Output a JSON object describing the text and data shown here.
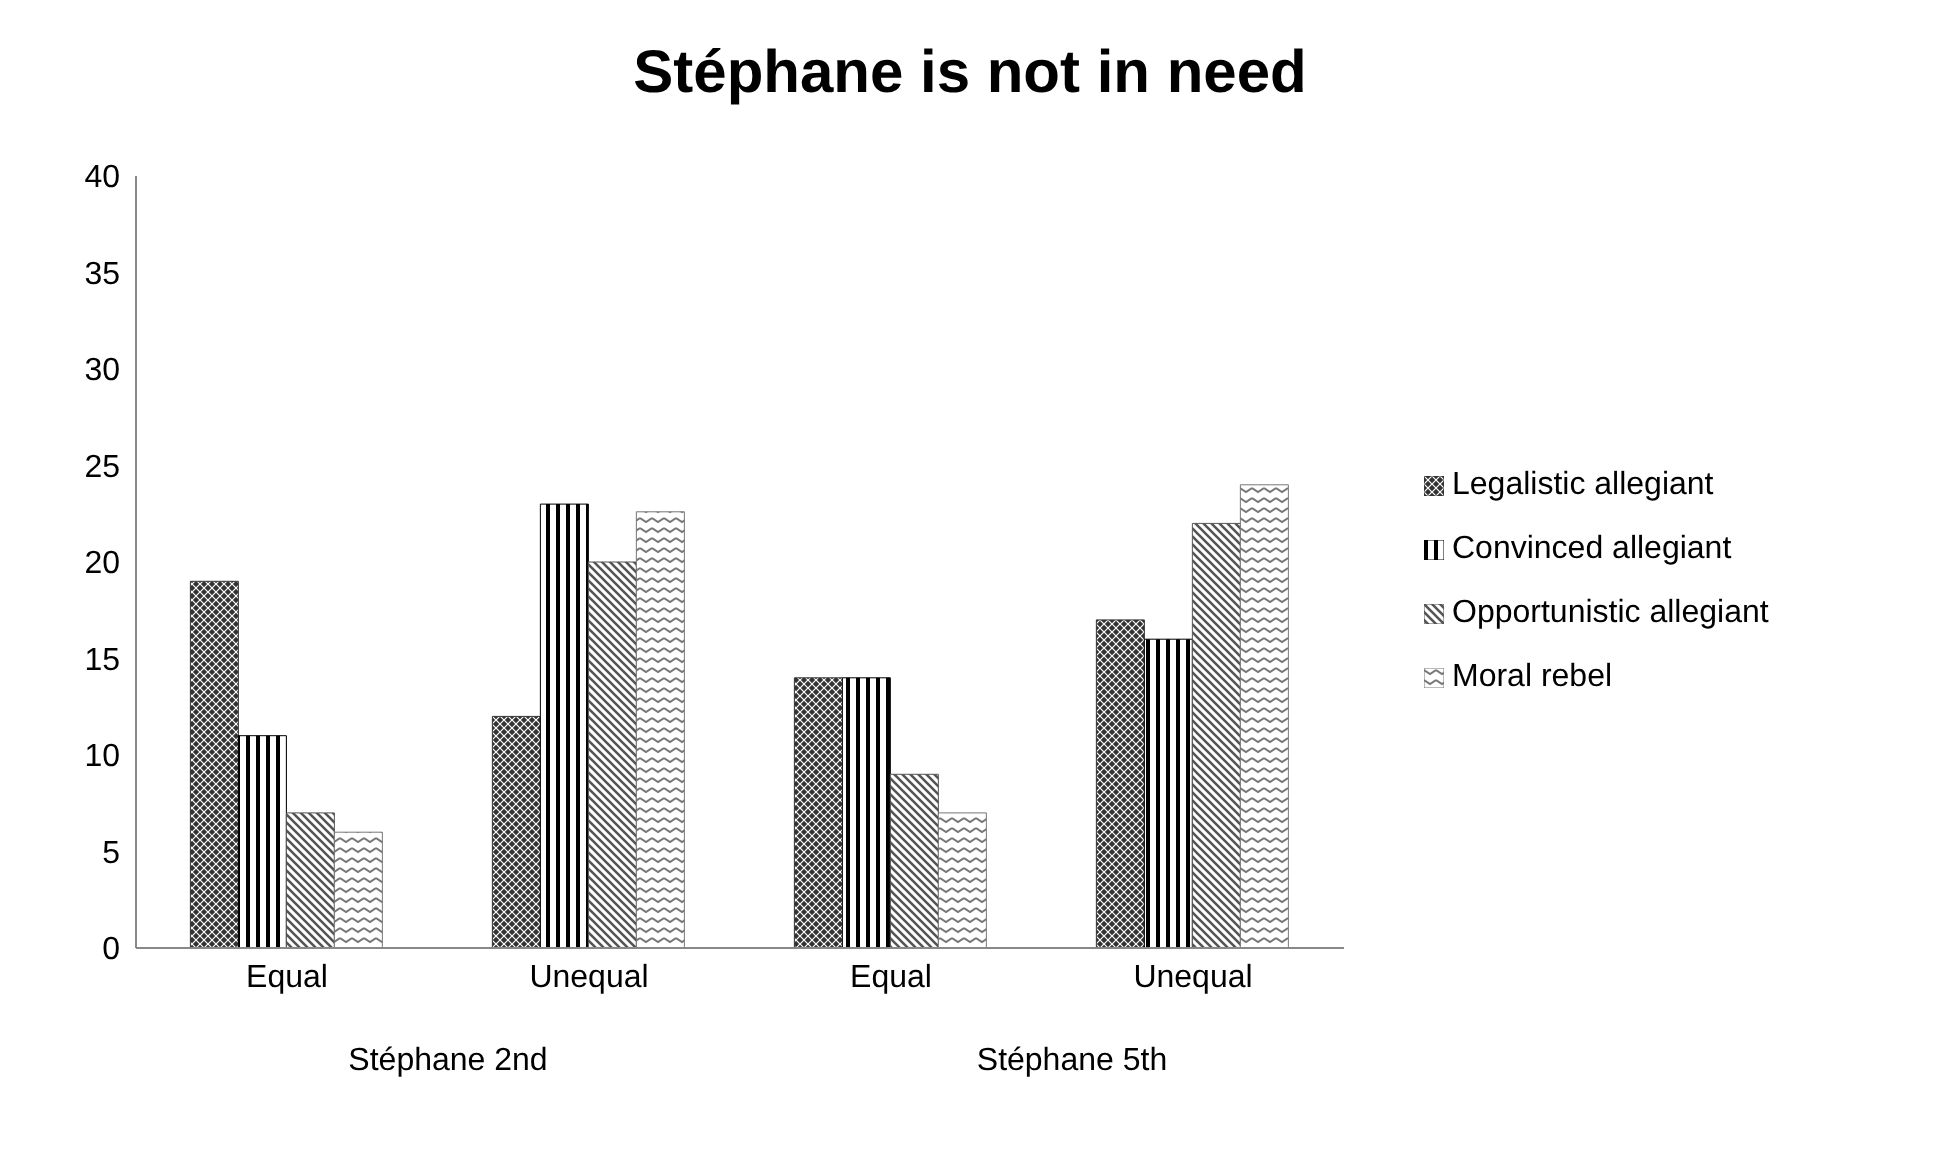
{
  "chart_data": {
    "type": "bar",
    "title": "Stéphane is not in need",
    "categories": [
      "Equal",
      "Unequal",
      "Equal",
      "Unequal"
    ],
    "annotations": [
      "Stéphane 2nd",
      "Stéphane 5th"
    ],
    "series": [
      {
        "name": "Legalistic allegiant",
        "color": "#333333",
        "values": [
          19,
          12,
          14,
          17
        ]
      },
      {
        "name": "Convinced allegiant",
        "color": "#000000",
        "values": [
          11,
          23,
          14,
          16
        ]
      },
      {
        "name": "Opportunistic allegiant",
        "color": "#555555",
        "values": [
          7,
          20,
          9,
          22
        ]
      },
      {
        "name": "Moral rebel",
        "color": "#777777",
        "values": [
          6,
          22.6,
          7,
          24
        ]
      }
    ],
    "ylim": [
      0,
      40
    ],
    "yticks": [
      0,
      5,
      10,
      15,
      20,
      25,
      30,
      35,
      40
    ],
    "grid": false,
    "legend": "right"
  }
}
